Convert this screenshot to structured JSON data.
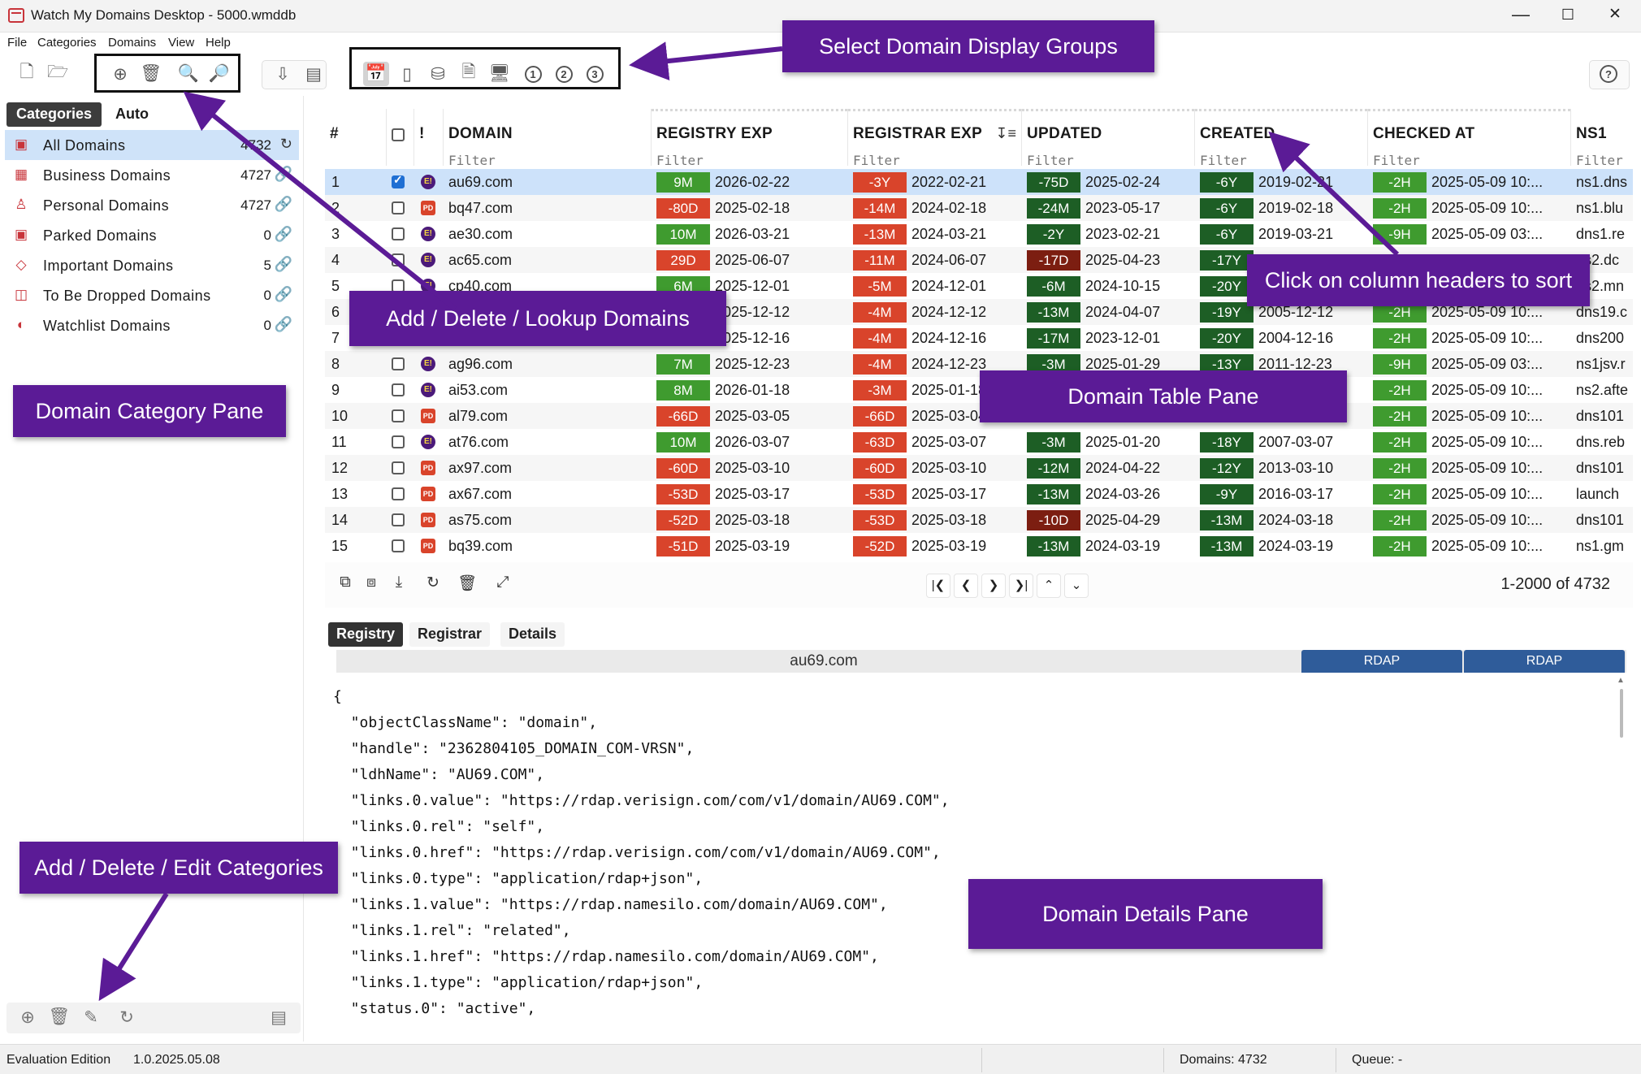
{
  "window": {
    "title": "Watch My Domains Desktop - 5000.wmddb",
    "minimize": "—",
    "maximize": "☐",
    "close": "✕"
  },
  "menu": [
    "File",
    "Categories",
    "Domains",
    "View",
    "Help"
  ],
  "left_pane": {
    "tabs": [
      "Categories",
      "Auto"
    ],
    "categories": [
      {
        "name": "All Domains",
        "count": "4732",
        "icon": "cube-icon"
      },
      {
        "name": "Business Domains",
        "count": "4727",
        "icon": "business-icon"
      },
      {
        "name": "Personal Domains",
        "count": "4727",
        "icon": "person-icon"
      },
      {
        "name": "Parked Domains",
        "count": "0",
        "icon": "parked-icon"
      },
      {
        "name": "Important Domains",
        "count": "5",
        "icon": "gem-icon"
      },
      {
        "name": "To Be Dropped Domains",
        "count": "0",
        "icon": "trash-icon"
      },
      {
        "name": "Watchlist Domains",
        "count": "0",
        "icon": "watch-icon"
      }
    ]
  },
  "table": {
    "columns": [
      "#",
      "!",
      "DOMAIN",
      "REGISTRY EXP",
      "REGISTRAR EXP",
      "UPDATED",
      "CREATED",
      "CHECKED AT",
      "NS1"
    ],
    "filter_placeholder": "Filter",
    "rows": [
      {
        "n": "1",
        "checked": true,
        "type": "E",
        "domain": "au69.com",
        "reg_p": "9M",
        "reg_c": "g",
        "reg_d": "2026-02-22",
        "rar_p": "-3Y",
        "rar_c": "r",
        "rar_d": "2022-02-21",
        "upd_p": "-75D",
        "upd_c": "dg",
        "upd_d": "2025-02-24",
        "cre_p": "-6Y",
        "cre_c": "dg",
        "cre_d": "2019-02-21",
        "chk_p": "-2H",
        "chk_d": "2025-05-09 10:...",
        "ns1": "ns1.dns"
      },
      {
        "n": "2",
        "checked": false,
        "type": "PD",
        "domain": "bq47.com",
        "reg_p": "-80D",
        "reg_c": "r",
        "reg_d": "2025-02-18",
        "rar_p": "-14M",
        "rar_c": "r",
        "rar_d": "2024-02-18",
        "upd_p": "-24M",
        "upd_c": "dg",
        "upd_d": "2023-05-17",
        "cre_p": "-6Y",
        "cre_c": "dg",
        "cre_d": "2019-02-18",
        "chk_p": "-2H",
        "chk_d": "2025-05-09 10:...",
        "ns1": "ns1.blu"
      },
      {
        "n": "3",
        "checked": false,
        "type": "E",
        "domain": "ae30.com",
        "reg_p": "10M",
        "reg_c": "g",
        "reg_d": "2026-03-21",
        "rar_p": "-13M",
        "rar_c": "r",
        "rar_d": "2024-03-21",
        "upd_p": "-2Y",
        "upd_c": "dg",
        "upd_d": "2023-02-21",
        "cre_p": "-6Y",
        "cre_c": "dg",
        "cre_d": "2019-03-21",
        "chk_p": "-9H",
        "chk_d": "2025-05-09 03:...",
        "ns1": "dns1.re"
      },
      {
        "n": "4",
        "checked": false,
        "type": "E",
        "domain": "ac65.com",
        "reg_p": "29D",
        "reg_c": "r",
        "reg_d": "2025-06-07",
        "rar_p": "-11M",
        "rar_c": "r",
        "rar_d": "2024-06-07",
        "upd_p": "-17D",
        "upd_c": "dr",
        "upd_d": "2025-04-23",
        "cre_p": "-17Y",
        "cre_c": "dg",
        "cre_d": "",
        "chk_p": "",
        "chk_d": "",
        "ns1": "ns2.dc"
      },
      {
        "n": "5",
        "checked": false,
        "type": "E",
        "domain": "cp40.com",
        "reg_p": "6M",
        "reg_c": "g",
        "reg_d": "2025-12-01",
        "rar_p": "-5M",
        "rar_c": "r",
        "rar_d": "2024-12-01",
        "upd_p": "-6M",
        "upd_c": "dg",
        "upd_d": "2024-10-15",
        "cre_p": "-20Y",
        "cre_c": "dg",
        "cre_d": "",
        "chk_p": "",
        "chk_d": "",
        "ns1": "ns2.mn"
      },
      {
        "n": "6",
        "checked": false,
        "type": "",
        "domain": "",
        "reg_p": "",
        "reg_c": "g",
        "reg_d": "2025-12-12",
        "rar_p": "-4M",
        "rar_c": "r",
        "rar_d": "2024-12-12",
        "upd_p": "-13M",
        "upd_c": "dg",
        "upd_d": "2024-04-07",
        "cre_p": "-19Y",
        "cre_c": "dg",
        "cre_d": "2005-12-12",
        "chk_p": "-2H",
        "chk_d": "2025-05-09 10:...",
        "ns1": "dns19.c"
      },
      {
        "n": "7",
        "checked": false,
        "type": "",
        "domain": "",
        "reg_p": "",
        "reg_c": "g",
        "reg_d": "2025-12-16",
        "rar_p": "-4M",
        "rar_c": "r",
        "rar_d": "2024-12-16",
        "upd_p": "-17M",
        "upd_c": "dg",
        "upd_d": "2023-12-01",
        "cre_p": "-20Y",
        "cre_c": "dg",
        "cre_d": "2004-12-16",
        "chk_p": "-2H",
        "chk_d": "2025-05-09 10:...",
        "ns1": "dns200"
      },
      {
        "n": "8",
        "checked": false,
        "type": "E",
        "domain": "ag96.com",
        "reg_p": "7M",
        "reg_c": "g",
        "reg_d": "2025-12-23",
        "rar_p": "-4M",
        "rar_c": "r",
        "rar_d": "2024-12-23",
        "upd_p": "-3M",
        "upd_c": "dg",
        "upd_d": "2025-01-29",
        "cre_p": "-13Y",
        "cre_c": "dg",
        "cre_d": "2011-12-23",
        "chk_p": "-9H",
        "chk_d": "2025-05-09 03:...",
        "ns1": "ns1jsv.r"
      },
      {
        "n": "9",
        "checked": false,
        "type": "E",
        "domain": "ai53.com",
        "reg_p": "8M",
        "reg_c": "g",
        "reg_d": "2026-01-18",
        "rar_p": "-3M",
        "rar_c": "r",
        "rar_d": "2025-01-18",
        "upd_p": "",
        "upd_c": "dg",
        "upd_d": "",
        "cre_p": "",
        "cre_c": "dg",
        "cre_d": "",
        "chk_p": "-2H",
        "chk_d": "2025-05-09 10:...",
        "ns1": "ns2.afte"
      },
      {
        "n": "10",
        "checked": false,
        "type": "PD",
        "domain": "al79.com",
        "reg_p": "-66D",
        "reg_c": "r",
        "reg_d": "2025-03-05",
        "rar_p": "-66D",
        "rar_c": "r",
        "rar_d": "2025-03-04",
        "upd_p": "",
        "upd_c": "dg",
        "upd_d": "",
        "cre_p": "",
        "cre_c": "dg",
        "cre_d": "",
        "chk_p": "-2H",
        "chk_d": "2025-05-09 10:...",
        "ns1": "dns101"
      },
      {
        "n": "11",
        "checked": false,
        "type": "E",
        "domain": "at76.com",
        "reg_p": "10M",
        "reg_c": "g",
        "reg_d": "2026-03-07",
        "rar_p": "-63D",
        "rar_c": "r",
        "rar_d": "2025-03-07",
        "upd_p": "-3M",
        "upd_c": "dg",
        "upd_d": "2025-01-20",
        "cre_p": "-18Y",
        "cre_c": "dg",
        "cre_d": "2007-03-07",
        "chk_p": "-2H",
        "chk_d": "2025-05-09 10:...",
        "ns1": "dns.reb"
      },
      {
        "n": "12",
        "checked": false,
        "type": "PD",
        "domain": "ax97.com",
        "reg_p": "-60D",
        "reg_c": "r",
        "reg_d": "2025-03-10",
        "rar_p": "-60D",
        "rar_c": "r",
        "rar_d": "2025-03-10",
        "upd_p": "-12M",
        "upd_c": "dg",
        "upd_d": "2024-04-22",
        "cre_p": "-12Y",
        "cre_c": "dg",
        "cre_d": "2013-03-10",
        "chk_p": "-2H",
        "chk_d": "2025-05-09 10:...",
        "ns1": "dns101"
      },
      {
        "n": "13",
        "checked": false,
        "type": "PD",
        "domain": "ax67.com",
        "reg_p": "-53D",
        "reg_c": "r",
        "reg_d": "2025-03-17",
        "rar_p": "-53D",
        "rar_c": "r",
        "rar_d": "2025-03-17",
        "upd_p": "-13M",
        "upd_c": "dg",
        "upd_d": "2024-03-26",
        "cre_p": "-9Y",
        "cre_c": "dg",
        "cre_d": "2016-03-17",
        "chk_p": "-2H",
        "chk_d": "2025-05-09 10:...",
        "ns1": "launch"
      },
      {
        "n": "14",
        "checked": false,
        "type": "PD",
        "domain": "as75.com",
        "reg_p": "-52D",
        "reg_c": "r",
        "reg_d": "2025-03-18",
        "rar_p": "-53D",
        "rar_c": "r",
        "rar_d": "2025-03-18",
        "upd_p": "-10D",
        "upd_c": "dr",
        "upd_d": "2025-04-29",
        "cre_p": "-13M",
        "cre_c": "dg",
        "cre_d": "2024-03-18",
        "chk_p": "-2H",
        "chk_d": "2025-05-09 10:...",
        "ns1": "dns101"
      },
      {
        "n": "15",
        "checked": false,
        "type": "PD",
        "domain": "bq39.com",
        "reg_p": "-51D",
        "reg_c": "r",
        "reg_d": "2025-03-19",
        "rar_p": "-52D",
        "rar_c": "r",
        "rar_d": "2025-03-19",
        "upd_p": "-13M",
        "upd_c": "dg",
        "upd_d": "2024-03-19",
        "cre_p": "-13M",
        "cre_c": "dg",
        "cre_d": "2024-03-19",
        "chk_p": "-2H",
        "chk_d": "2025-05-09 10:...",
        "ns1": "ns1.gm"
      }
    ],
    "range": "1-2000 of 4732"
  },
  "details": {
    "tabs": [
      "Registry",
      "Registrar",
      "Details"
    ],
    "domain": "au69.com",
    "rdap_labels": [
      "RDAP",
      "RDAP"
    ],
    "json_lines": [
      "{",
      "  \"objectClassName\": \"domain\",",
      "  \"handle\": \"2362804105_DOMAIN_COM-VRSN\",",
      "  \"ldhName\": \"AU69.COM\",",
      "  \"links.0.value\": \"https://rdap.verisign.com/com/v1/domain/AU69.COM\",",
      "  \"links.0.rel\": \"self\",",
      "  \"links.0.href\": \"https://rdap.verisign.com/com/v1/domain/AU69.COM\",",
      "  \"links.0.type\": \"application/rdap+json\",",
      "  \"links.1.value\": \"https://rdap.namesilo.com/domain/AU69.COM\",",
      "  \"links.1.rel\": \"related\",",
      "  \"links.1.href\": \"https://rdap.namesilo.com/domain/AU69.COM\",",
      "  \"links.1.type\": \"application/rdap+json\",",
      "  \"status.0\": \"active\","
    ]
  },
  "status_bar": {
    "edition": "Evaluation Edition",
    "version": "1.0.2025.05.08",
    "domains": "Domains: 4732",
    "queue": "Queue: -"
  },
  "annotations": {
    "display_groups": "Select Domain Display Groups",
    "add_delete_lookup": "Add / Delete / Lookup Domains",
    "sort": "Click on column headers to sort",
    "category_pane": "Domain Category Pane",
    "table_pane": "Domain Table Pane",
    "add_delete_edit_cat": "Add / Delete / Edit Categories",
    "details_pane": "Domain Details Pane"
  },
  "colors": {
    "accent_annotation": "#5b1b96",
    "selection": "#cde2fa",
    "pill_green": "#3f9b2f",
    "pill_red": "#d9442b",
    "pill_darkgreen": "#1d5e25",
    "pill_darkred": "#7c1e11",
    "rdap_blue": "#2f5c9a"
  }
}
